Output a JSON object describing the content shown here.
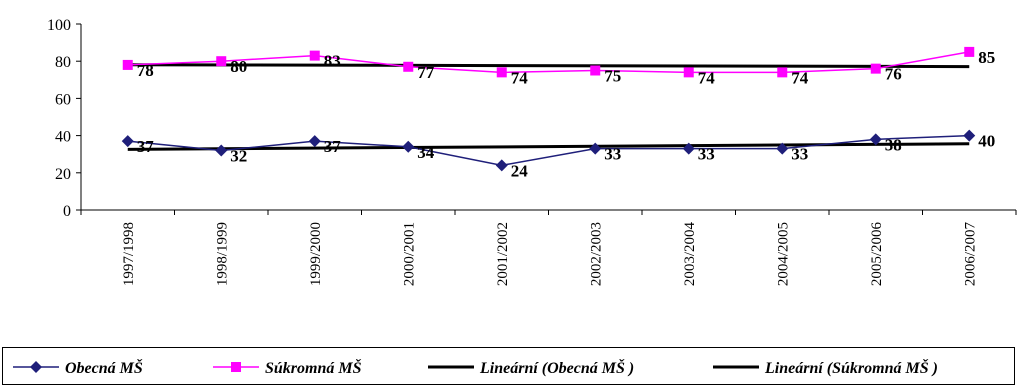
{
  "chart_data": {
    "type": "line",
    "title": "",
    "xlabel": "",
    "ylabel": "",
    "ylim": [
      0,
      100
    ],
    "yticks": [
      0,
      20,
      40,
      60,
      80,
      100
    ],
    "categories": [
      "1997/1998",
      "1998/1999",
      "1999/2000",
      "2000/2001",
      "2001/2002",
      "2002/2003",
      "2003/2004",
      "2004/2005",
      "2005/2006",
      "2006/2007"
    ],
    "series": [
      {
        "name": "Obecná MŠ",
        "values": [
          37,
          32,
          37,
          34,
          24,
          33,
          33,
          33,
          38,
          40
        ],
        "color": "#1f1f7a",
        "marker": "diamond"
      },
      {
        "name": "Súkromná MŠ",
        "values": [
          78,
          80,
          83,
          77,
          74,
          75,
          74,
          74,
          76,
          85
        ],
        "color": "#ff00ff",
        "marker": "square"
      }
    ],
    "trendlines": [
      {
        "name": "Lineární (Obecná MŠ )",
        "of": 0,
        "color": "#000000"
      },
      {
        "name": "Lineární (Súkromná MŠ )",
        "of": 1,
        "color": "#000000"
      }
    ],
    "legend_position": "bottom",
    "grid": false
  }
}
